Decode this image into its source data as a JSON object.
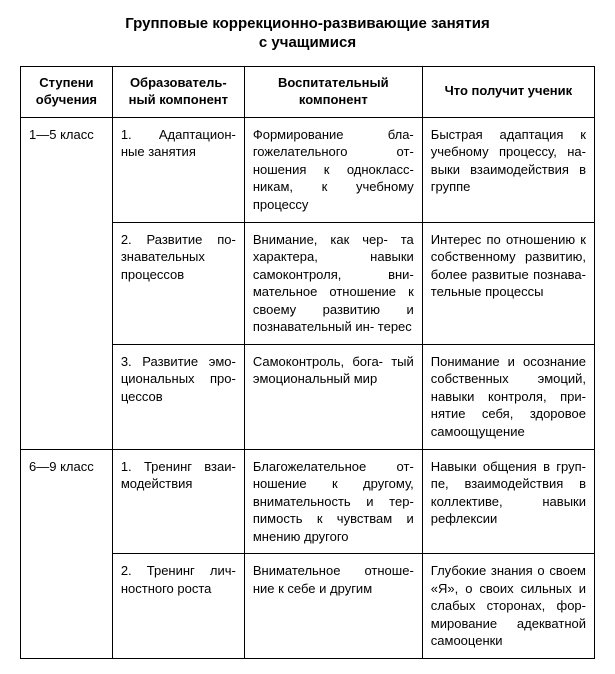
{
  "title_line1": "Групповые коррекционно-развивающие занятия",
  "title_line2": "с учащимися",
  "table": {
    "headers": {
      "col1": "Ступени обучения",
      "col2": "Образователь- ный компонент",
      "col3": "Воспитательный компонент",
      "col4": "Что получит ученик"
    },
    "groups": [
      {
        "level": "1—5 класс",
        "rows": [
          {
            "edu": "1. Адаптацион- ные занятия",
            "vosp": "Формирование бла- гожелательного от- ношения к однокласс- никам, к учебному процессу",
            "result": "Быстрая адаптация к учебному процессу, на- выки взаимодействия в группе"
          },
          {
            "edu": "2. Развитие по- знавательных процессов",
            "vosp": "Внимание, как чер- та характера, навыки самоконтроля, вни- мательное отношение к своему развитию и познавательный ин- терес",
            "result": "Интерес по отношению к собственному развитию, более развитые познава- тельные процессы"
          },
          {
            "edu": "3. Развитие эмо- циональных про- цессов",
            "vosp": "Самоконтроль, бога- тый эмоциональный мир",
            "result": "Понимание и осознание собственных эмоций, навыки контроля, при- нятие себя, здоровое самоощущение"
          }
        ]
      },
      {
        "level": "6—9 класс",
        "rows": [
          {
            "edu": "1. Тренинг взаи- модействия",
            "vosp": "Благожелательное от- ношение к другому, внимательность и тер- пимость к чувствам и мнению другого",
            "result": "Навыки общения в груп- пе, взаимодействия в коллективе, навыки рефлексии"
          },
          {
            "edu": "2. Тренинг лич- ностного роста",
            "vosp": "Внимательное отноше- ние к себе и другим",
            "result": "Глубокие знания о своем «Я», о своих сильных и слабых сторонах, фор- мирование адекватной самооценки"
          }
        ]
      }
    ]
  }
}
